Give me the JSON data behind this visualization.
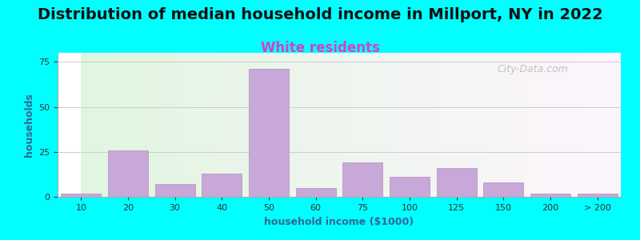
{
  "title": "Distribution of median household income in Millport, NY in 2022",
  "subtitle": "White residents",
  "xlabel": "household income ($1000)",
  "ylabel": "households",
  "title_fontsize": 14,
  "subtitle_fontsize": 12,
  "subtitle_color": "#cc44cc",
  "ylabel_color": "#336699",
  "xlabel_color": "#336699",
  "background_outer": "#00ffff",
  "bar_color": "#c8a8d8",
  "bar_edge_color": "#b090c0",
  "categories": [
    "10",
    "20",
    "30",
    "40",
    "50",
    "60",
    "75",
    "100",
    "125",
    "150",
    "200",
    "> 200"
  ],
  "values": [
    2,
    26,
    7,
    13,
    71,
    5,
    19,
    11,
    16,
    8,
    2,
    2
  ],
  "ylim": [
    0,
    80
  ],
  "yticks": [
    0,
    25,
    50,
    75
  ],
  "watermark": "City-Data.com"
}
